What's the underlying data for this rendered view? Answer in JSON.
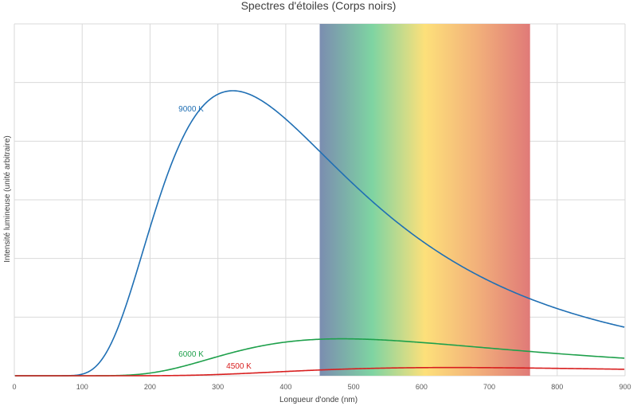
{
  "chart_data": {
    "type": "line",
    "title": "Spectres d'étoiles (Corps noirs)",
    "xlabel": "Longueur d'onde (nm)",
    "ylabel": "Intensité lumineuse (unité arbitraire)",
    "xlim": [
      0,
      900
    ],
    "ylim": [
      0,
      6
    ],
    "x_ticks": [
      "0",
      "100",
      "200",
      "300",
      "400",
      "500",
      "600",
      "700",
      "800",
      "900"
    ],
    "grid": true,
    "visible_band_nm": [
      450,
      760
    ],
    "visible_band_colors": [
      "#7b8db0",
      "#7ed4a2",
      "#fde07a",
      "#f2b07a",
      "#e07a78"
    ],
    "series": [
      {
        "name": "9000 K",
        "temperature_K": 9000,
        "color": "#1f6fb4",
        "peak_value": 4.86
      },
      {
        "name": "6000 K",
        "temperature_K": 6000,
        "color": "#1ea04b",
        "peak_value": 0.63
      },
      {
        "name": "4500 K",
        "temperature_K": 4500,
        "color": "#d81e1e",
        "peak_value": 0.14
      }
    ]
  }
}
